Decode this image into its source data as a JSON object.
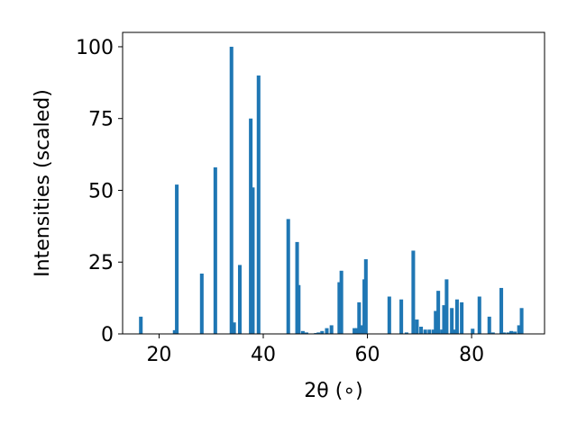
{
  "chart_data": {
    "type": "bar",
    "title": "",
    "xlabel": "2θ (∘)",
    "ylabel": "Intensities (scaled)",
    "xlim": [
      13,
      94
    ],
    "ylim": [
      0,
      105
    ],
    "xticks": [
      20,
      40,
      60,
      80
    ],
    "yticks": [
      0,
      25,
      50,
      75,
      100
    ],
    "grid": false,
    "bar_width": 0.7,
    "color": "#1f77b4",
    "series": [
      {
        "x": [
          16.5,
          23.0,
          23.4,
          28.2,
          30.8,
          33.9,
          34.4,
          35.5,
          37.6,
          38.0,
          39.1,
          44.8,
          46.5,
          46.8,
          47.6,
          48.3,
          50.1,
          50.6,
          51.3,
          52.2,
          53.1,
          54.6,
          55.0,
          57.5,
          58.0,
          58.4,
          59.0,
          59.4,
          59.7,
          64.2,
          66.5,
          67.5,
          68.8,
          69.5,
          70.3,
          71.1,
          71.9,
          72.7,
          73.1,
          73.6,
          74.3,
          74.7,
          75.2,
          76.2,
          76.7,
          77.2,
          78.1,
          80.2,
          81.5,
          83.4,
          84.1,
          85.7,
          86.2,
          87.0,
          87.6,
          88.3,
          89.1,
          89.6
        ],
        "values": [
          6,
          1.3,
          52,
          21,
          58,
          100,
          4,
          24,
          75,
          51,
          90,
          40,
          32,
          17,
          1,
          0.5,
          0.3,
          0.5,
          1,
          2,
          3,
          18,
          22,
          2,
          2,
          11,
          3,
          19,
          26,
          13,
          12,
          0.5,
          29,
          5,
          2.5,
          1.5,
          1.5,
          1.5,
          8,
          15,
          1.5,
          10,
          19,
          9,
          1.5,
          12,
          11,
          1.8,
          13,
          6,
          0.5,
          16,
          0.5,
          0.5,
          1,
          0.8,
          3,
          9
        ]
      }
    ]
  }
}
